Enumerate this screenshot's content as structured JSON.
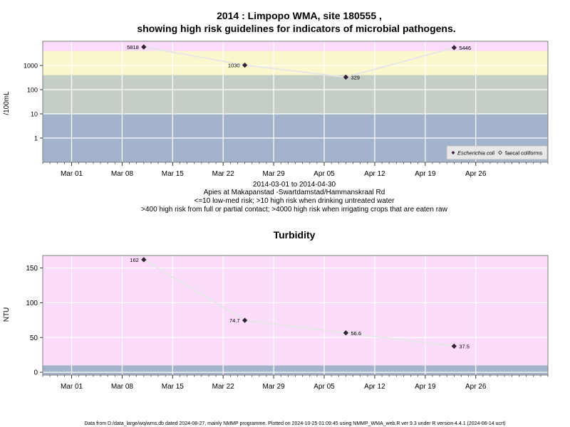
{
  "chart_data": [
    {
      "type": "line",
      "title_line1": "2014 : Limpopo WMA, site 180555 ,",
      "title_line2": "showing high risk guidelines for indicators of microbial pathogens.",
      "ylabel": "/100mL",
      "yscale": "log",
      "ylim": [
        0.1,
        10000
      ],
      "yticks": [
        1,
        10,
        100,
        1000
      ],
      "ytick_labels": [
        "1",
        "10",
        "100",
        "1000"
      ],
      "xlim": [
        "2014-02-25",
        "2014-05-06"
      ],
      "xticks": [
        "2014-03-01",
        "2014-03-08",
        "2014-03-15",
        "2014-03-22",
        "2014-03-29",
        "2014-04-05",
        "2014-04-12",
        "2014-04-19",
        "2014-04-26"
      ],
      "xtick_labels": [
        "Mar 01",
        "Mar 08",
        "Mar 15",
        "Mar 22",
        "Mar 29",
        "Apr 05",
        "Apr 12",
        "Apr 19",
        "Apr 26"
      ],
      "bands": [
        {
          "from": 0.1,
          "to": 10,
          "color": "#a3b3cb"
        },
        {
          "from": 10,
          "to": 400,
          "color": "#c5cec6"
        },
        {
          "from": 400,
          "to": 4000,
          "color": "#fbf7cc"
        },
        {
          "from": 4000,
          "to": 10000,
          "color": "#fbdcfb"
        }
      ],
      "series": [
        {
          "name": "Escherichia coli",
          "x": [
            "2014-03-11",
            "2014-03-25",
            "2014-04-08",
            "2014-04-23"
          ],
          "values": [
            5818,
            1030,
            329,
            5446
          ],
          "labels": [
            "5818",
            "1030",
            "329",
            "5446"
          ],
          "label_side": [
            "left",
            "left",
            "right",
            "right"
          ]
        }
      ],
      "legend": {
        "position": "bottom-right",
        "items": [
          "Escherichia coli",
          "faecal coliforms"
        ]
      },
      "grid": true,
      "caption": {
        "date_range": "2014-03-01 to 2014-04-30",
        "site": "Apies at Makapanstad -Swartdamstad/Hammanskraal Rd",
        "guide1": "<=10 low-med risk; >10 high risk when drinking untreated water",
        "guide2": ">400 high risk from full or partial contact; >4000 high risk when irrigating crops that are eaten raw"
      }
    },
    {
      "type": "line",
      "title": "Turbidity",
      "ylabel": "NTU",
      "yscale": "linear",
      "ylim": [
        -4,
        168
      ],
      "yticks": [
        0,
        50,
        100,
        150
      ],
      "ytick_labels": [
        "0",
        "50",
        "100",
        "150"
      ],
      "xlim": [
        "2014-02-25",
        "2014-05-06"
      ],
      "xticks": [
        "2014-03-01",
        "2014-03-08",
        "2014-03-15",
        "2014-03-22",
        "2014-03-29",
        "2014-04-05",
        "2014-04-12",
        "2014-04-19",
        "2014-04-26"
      ],
      "xtick_labels": [
        "Mar 01",
        "Mar 08",
        "Mar 15",
        "Mar 22",
        "Mar 29",
        "Apr 05",
        "Apr 12",
        "Apr 19",
        "Apr 26"
      ],
      "bands": [
        {
          "from": -4,
          "to": 10,
          "color": "#a3b3cb"
        },
        {
          "from": 10,
          "to": 168,
          "color": "#fbdcfb"
        }
      ],
      "series": [
        {
          "name": "Turbidity",
          "x": [
            "2014-03-11",
            "2014-03-25",
            "2014-04-08",
            "2014-04-23"
          ],
          "values": [
            162,
            74.7,
            56.6,
            37.5
          ],
          "labels": [
            "162",
            "74.7",
            "56.6",
            "37.5"
          ],
          "label_side": [
            "left",
            "left",
            "right",
            "right"
          ]
        }
      ],
      "grid": true
    }
  ],
  "footer": "Data from D:/data_large/wq/wms.db dated 2024-08-27, mainly NMMP programme. Plotted on 2024-10-25 01:09:45 using NMMP_WMA_web.R ver 9.3 under R version 4.4.1 (2024-06-14 ucrt)"
}
